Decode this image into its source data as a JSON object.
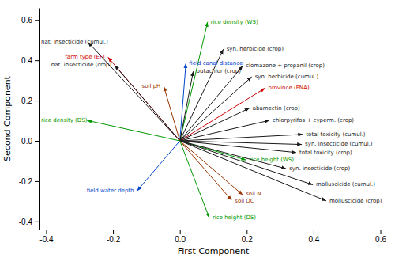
{
  "chart_data": {
    "type": "biplot",
    "xlabel": "First Component",
    "ylabel": "Second Component",
    "xlim": [
      -0.42,
      0.62
    ],
    "ylim": [
      -0.44,
      0.66
    ],
    "xticks": [
      -0.4,
      -0.2,
      {
        "value": 0.0,
        "label": "0.0"
      },
      0.2,
      0.4,
      0.6
    ],
    "yticks": [
      -0.4,
      -0.2,
      {
        "value": 0.0,
        "label": "0.0"
      },
      0.2,
      0.4,
      0.6
    ],
    "labels": [
      "rice density (WS)",
      "nat. insecticide (cumul.)",
      "farm type (EF)",
      "nat. insecticide (crop)",
      "field canal distance",
      "butachlor (crop)",
      "soil pH",
      "syn. herbicide (crop)",
      "clomazone + propanil (crop)",
      "syn. herbicide (cumul.)",
      "province (PNA)",
      "abamectin (crop)",
      "chlorpyrifos + cyperm. (crop)",
      "total toxicity (cumul.)",
      "syn. insecticide (cumul.)",
      "total toxicity (crop)",
      "rice height (WS)",
      "syn. insecticide (crop)",
      "molluscicide (cumul.)",
      "molluscicide (crop)",
      "soil N",
      "soil OC",
      "rice height (DS)",
      "field water depth",
      "rice density (DS)"
    ],
    "x": [
      0.083,
      -0.275,
      -0.215,
      -0.195,
      0.018,
      0.04,
      -0.048,
      0.13,
      0.188,
      0.215,
      0.255,
      0.208,
      0.268,
      0.368,
      0.365,
      0.348,
      0.198,
      0.318,
      0.398,
      0.438,
      0.188,
      0.155,
      0.088,
      -0.128,
      -0.278
    ],
    "values": [
      0.59,
      0.49,
      0.415,
      0.375,
      0.385,
      0.345,
      0.27,
      0.455,
      0.372,
      0.318,
      0.262,
      0.162,
      0.102,
      0.032,
      -0.018,
      -0.058,
      -0.095,
      -0.138,
      -0.218,
      -0.298,
      -0.268,
      -0.295,
      -0.382,
      -0.248,
      0.102
    ],
    "colors": [
      "#009900",
      "#1a1a1a",
      "#cc0000",
      "#1a1a1a",
      "#0044cc",
      "#1a1a1a",
      "#993300",
      "#1a1a1a",
      "#1a1a1a",
      "#1a1a1a",
      "#cc0000",
      "#1a1a1a",
      "#1a1a1a",
      "#1a1a1a",
      "#1a1a1a",
      "#1a1a1a",
      "#009900",
      "#1a1a1a",
      "#1a1a1a",
      "#1a1a1a",
      "#993300",
      "#993300",
      "#009900",
      "#0044cc",
      "#009900"
    ]
  }
}
